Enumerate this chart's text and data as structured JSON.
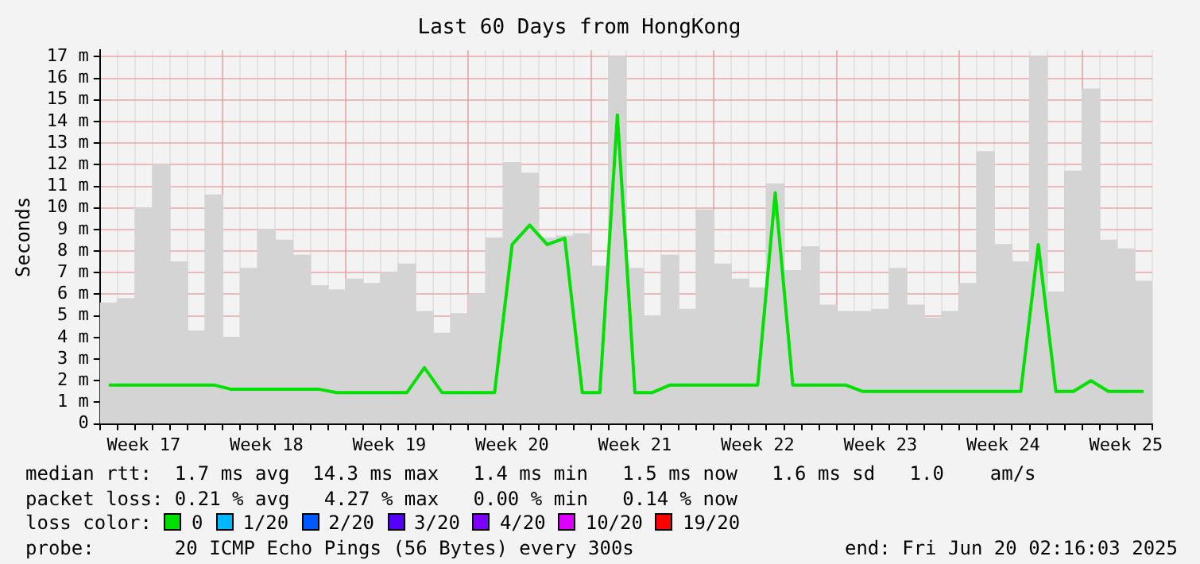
{
  "chart_data": {
    "type": "line",
    "title": "Last 60 Days from HongKong",
    "ylabel": "Seconds",
    "categories": [
      null,
      null,
      "Week 17",
      null,
      null,
      null,
      null,
      null,
      null,
      "Week 18",
      null,
      null,
      null,
      null,
      null,
      null,
      "Week 19",
      null,
      null,
      null,
      null,
      null,
      null,
      "Week 20",
      null,
      null,
      null,
      null,
      null,
      null,
      "Week 21",
      null,
      null,
      null,
      null,
      null,
      null,
      "Week 22",
      null,
      null,
      null,
      null,
      null,
      null,
      "Week 23",
      null,
      null,
      null,
      null,
      null,
      null,
      "Week 24",
      null,
      null,
      null,
      null,
      null,
      null,
      "Week 25",
      null
    ],
    "ylim": [
      0,
      17.3
    ],
    "yticks": [
      0,
      {
        "value": 1,
        "label": "1 m"
      },
      {
        "value": 2,
        "label": "2 m"
      },
      {
        "value": 3,
        "label": "3 m"
      },
      {
        "value": 4,
        "label": "4 m"
      },
      {
        "value": 5,
        "label": "5 m"
      },
      {
        "value": 6,
        "label": "6 m"
      },
      {
        "value": 7,
        "label": "7 m"
      },
      {
        "value": 8,
        "label": "8 m"
      },
      {
        "value": 9,
        "label": "9 m"
      },
      {
        "value": 10,
        "label": "10 m"
      },
      {
        "value": 11,
        "label": "11 m"
      },
      {
        "value": 12,
        "label": "12 m"
      },
      {
        "value": 13,
        "label": "13 m"
      },
      {
        "value": 14,
        "label": "14 m"
      },
      {
        "value": 15,
        "label": "15 m"
      },
      {
        "value": 16,
        "label": "16 m"
      },
      {
        "value": 17,
        "label": "17 m"
      }
    ],
    "grid": true,
    "legend": "bottom",
    "legend_title": "loss color:",
    "marker": "none",
    "series": [
      {
        "type": "bar",
        "color": "#d4d4d4",
        "values": [
          5.6,
          5.8,
          10,
          12,
          7.5,
          4.3,
          10.6,
          4,
          7.2,
          9,
          8.5,
          7.8,
          6.4,
          6.2,
          6.7,
          6.5,
          7,
          7.4,
          5.2,
          4.2,
          5.1,
          6,
          8.6,
          12.1,
          11.6,
          8.6,
          8.7,
          8.8,
          7.3,
          17,
          7.2,
          5,
          7.8,
          5.3,
          9.9,
          7.4,
          6.7,
          6.3,
          11.1,
          7.1,
          8.2,
          5.5,
          5.2,
          5.2,
          5.3,
          7.2,
          5.5,
          4.9,
          5.2,
          6.5,
          12.6,
          8.3,
          7.5,
          17,
          6.1,
          11.7,
          15.5,
          8.5,
          8.1,
          6.6
        ]
      },
      {
        "name": "0",
        "color": "#00e000",
        "values": [
          1.8,
          1.8,
          1.8,
          1.8,
          1.8,
          1.8,
          1.8,
          1.6,
          1.6,
          1.6,
          1.6,
          1.6,
          1.6,
          1.45,
          1.45,
          1.45,
          1.45,
          1.45,
          2.6,
          1.45,
          1.45,
          1.45,
          1.45,
          8.3,
          9.2,
          8.3,
          8.6,
          1.45,
          1.45,
          14.3,
          1.45,
          1.45,
          1.8,
          1.8,
          1.8,
          1.8,
          1.8,
          1.8,
          10.7,
          1.8,
          1.8,
          1.8,
          1.8,
          1.5,
          1.5,
          1.5,
          1.5,
          1.5,
          1.5,
          1.5,
          1.5,
          1.5,
          1.5,
          8.3,
          1.5,
          1.5,
          2.0,
          1.5,
          1.5,
          1.5
        ]
      },
      {
        "name": "1/20",
        "color": "#00b8ff",
        "values": [
          null,
          null,
          null,
          null,
          null,
          null,
          null,
          null,
          null,
          null,
          null,
          null,
          null,
          null,
          null,
          null,
          null,
          null,
          null,
          null,
          null,
          null,
          null,
          null,
          null,
          null,
          null,
          null,
          null,
          null,
          null,
          null,
          null,
          null,
          null,
          null,
          null,
          null,
          null,
          null,
          null,
          null,
          null,
          null,
          null,
          null,
          null,
          null,
          null,
          null,
          null,
          null,
          null,
          null,
          null,
          null,
          null,
          null,
          null,
          null
        ]
      },
      {
        "name": "2/20",
        "color": "#0059ff",
        "values": [
          null,
          null,
          null,
          null,
          null,
          null,
          null,
          null,
          null,
          null,
          null,
          null,
          null,
          null,
          null,
          null,
          null,
          null,
          null,
          null,
          null,
          null,
          null,
          null,
          null,
          null,
          null,
          null,
          null,
          null,
          null,
          null,
          null,
          null,
          null,
          null,
          null,
          null,
          null,
          null,
          null,
          null,
          null,
          null,
          null,
          null,
          null,
          null,
          null,
          null,
          null,
          null,
          null,
          null,
          null,
          null,
          null,
          null,
          null,
          null
        ]
      },
      {
        "name": "3/20",
        "color": "#5500ff",
        "values": [
          null,
          null,
          null,
          null,
          null,
          null,
          null,
          null,
          null,
          null,
          null,
          null,
          null,
          null,
          null,
          null,
          null,
          null,
          null,
          null,
          null,
          null,
          null,
          null,
          null,
          null,
          null,
          null,
          null,
          null,
          null,
          null,
          null,
          null,
          null,
          null,
          null,
          null,
          null,
          null,
          null,
          null,
          null,
          null,
          null,
          null,
          null,
          null,
          null,
          null,
          null,
          null,
          null,
          null,
          null,
          null,
          null,
          null,
          null,
          null
        ]
      },
      {
        "name": "4/20",
        "color": "#7e00ff",
        "values": [
          null,
          null,
          null,
          null,
          null,
          null,
          null,
          null,
          null,
          null,
          null,
          null,
          null,
          null,
          null,
          null,
          null,
          null,
          null,
          null,
          null,
          null,
          null,
          null,
          null,
          null,
          null,
          null,
          null,
          null,
          null,
          null,
          null,
          null,
          null,
          null,
          null,
          null,
          null,
          null,
          null,
          null,
          null,
          null,
          null,
          null,
          null,
          null,
          null,
          null,
          null,
          null,
          null,
          null,
          null,
          null,
          null,
          null,
          null,
          null
        ]
      },
      {
        "name": "10/20",
        "color": "#dd00ff",
        "values": [
          null,
          null,
          null,
          null,
          null,
          null,
          null,
          null,
          null,
          null,
          null,
          null,
          null,
          null,
          null,
          null,
          null,
          null,
          null,
          null,
          null,
          null,
          null,
          null,
          null,
          null,
          null,
          null,
          null,
          null,
          null,
          null,
          null,
          null,
          null,
          null,
          null,
          null,
          null,
          null,
          null,
          null,
          null,
          null,
          null,
          null,
          null,
          null,
          null,
          null,
          null,
          null,
          null,
          null,
          null,
          null,
          null,
          null,
          null,
          null
        ]
      },
      {
        "name": "19/20",
        "color": "#ff0000",
        "values": [
          null,
          null,
          null,
          null,
          null,
          null,
          null,
          null,
          null,
          null,
          null,
          null,
          null,
          null,
          null,
          null,
          null,
          null,
          null,
          null,
          null,
          null,
          null,
          null,
          null,
          null,
          null,
          null,
          null,
          null,
          null,
          null,
          null,
          null,
          null,
          null,
          null,
          null,
          null,
          null,
          null,
          null,
          null,
          null,
          null,
          null,
          null,
          null,
          null,
          null,
          null,
          null,
          null,
          null,
          null,
          null,
          null,
          null,
          null,
          null
        ]
      }
    ],
    "annotations": [
      "median rtt:  1.7 ms avg  14.3 ms max   1.4 ms min   1.5 ms now   1.6 ms sd   1.0    am/s",
      "packet loss: 0.21 % avg   4.27 % max   0.00 % min   0.14 % now",
      "probe:       20 ICMP Echo Pings (56 Bytes) every 300s",
      "end: Fri Jun 20 02:16:03 2025"
    ]
  }
}
